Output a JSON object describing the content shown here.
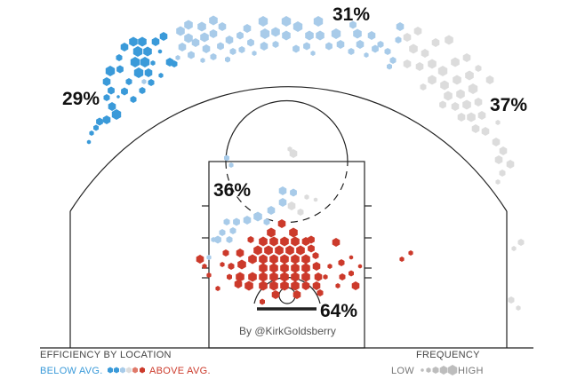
{
  "chart_data": {
    "type": "hexbin shot chart",
    "zones": [
      {
        "id": "left-corner-three",
        "label": "29%",
        "efficiency": "below"
      },
      {
        "id": "top-of-key-three",
        "label": "31%",
        "efficiency": "below"
      },
      {
        "id": "right-wing-three",
        "label": "37%",
        "efficiency": "average"
      },
      {
        "id": "mid-range",
        "label": "36%",
        "efficiency": "below"
      },
      {
        "id": "restricted-area",
        "label": "64%",
        "efficiency": "above"
      }
    ],
    "credit": "By @KirkGoldsberry",
    "legend": {
      "efficiency_title": "EFFICIENCY BY LOCATION",
      "below_label": "BELOW AVG.",
      "above_label": "ABOVE AVG.",
      "frequency_title": "FREQUENCY",
      "low_label": "LOW",
      "high_label": "HIGH"
    },
    "colors": {
      "below_strong": "#3a9ad9",
      "below_light": "#a8cbe9",
      "average": "#dcdcdc",
      "above_light": "#e07a6a",
      "above_strong": "#cc3a2b"
    }
  }
}
